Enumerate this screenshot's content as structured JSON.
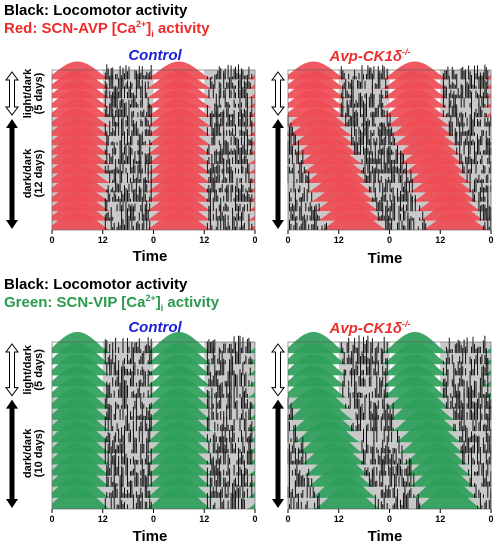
{
  "legend_top": {
    "line1": "Black: Locomotor activity",
    "line2_prefix": "Red: SCN-AVP [Ca",
    "line2_sup": "2+",
    "line2_close": "]",
    "line2_sub": "i",
    "line2_suffix": " activity",
    "color": "#ee2b2b"
  },
  "legend_bottom": {
    "line1": "Black: Locomotor activity",
    "line2_prefix": "Green: SCN-VIP [Ca",
    "line2_sup": "2+",
    "line2_close": "]",
    "line2_sub": "i",
    "line2_suffix": " activity",
    "color": "#2a9a4e"
  },
  "colors": {
    "red_trace": "#ee4c55",
    "green_trace": "#2ea05a",
    "dark_phase": "#c9c9c9",
    "light_phase": "#ffffff",
    "locomotor": "#111111",
    "control_title": "#1d22d8",
    "ko_title": "#ee2b2b"
  },
  "panel_titles": {
    "control": "Control",
    "knockout": "Avp-CK1δ",
    "knockout_sup": "-/-"
  },
  "time_label": "Time",
  "tick_labels": [
    "0",
    "12",
    "0",
    "12",
    "0"
  ],
  "sections": {
    "top": {
      "ld_label_1": "light/dark",
      "ld_label_2": "(5 days)",
      "dd_label_1": "dark/dark",
      "dd_label_2": "(12 days)",
      "ld_days": 5,
      "dd_days": 12
    },
    "bottom": {
      "ld_label_1": "light/dark",
      "ld_label_2": "(5 days)",
      "dd_label_1": "dark/dark",
      "dd_label_2": "(10 days)",
      "ld_days": 5,
      "dd_days": 10
    }
  },
  "lighting": {
    "light_phase_hours": [
      0,
      12
    ],
    "dark_phase_hours": [
      12,
      24
    ]
  },
  "rhythm": {
    "control_avp_period_hours": 24,
    "knockout_avp_period_hours": 24.8,
    "control_vip_period_hours": 24,
    "knockout_vip_period_hours": 24.8
  }
}
